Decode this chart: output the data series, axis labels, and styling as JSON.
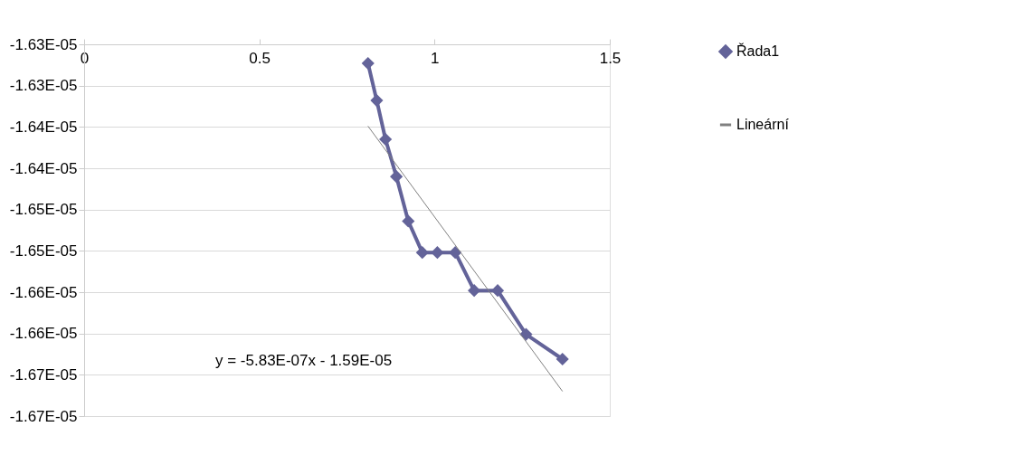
{
  "chart_data": {
    "type": "line",
    "annotations": [
      "y = -5.83E-07x - 1.59E-05"
    ],
    "x": [
      0.81,
      0.835,
      0.86,
      0.891,
      0.925,
      0.965,
      1.008,
      1.059,
      1.113,
      1.18,
      1.261,
      1.365
    ],
    "series": [
      {
        "name": "Řada1",
        "color": "#636399",
        "marker": "diamond",
        "values": [
          -1.6273e-05,
          -1.6318e-05,
          -1.6365e-05,
          -1.641e-05,
          -1.6464e-05,
          -1.6502e-05,
          -1.6502e-05,
          -1.6502e-05,
          -1.6548e-05,
          -1.6548e-05,
          -1.6601e-05,
          -1.6631e-05
        ]
      },
      {
        "name": "Lineární",
        "type": "line",
        "color": "#808080",
        "marker": "none",
        "x": [
          0.81,
          1.365
        ],
        "values": [
          -1.6349e-05,
          -1.667e-05
        ]
      }
    ],
    "xlim": [
      0,
      1.5
    ],
    "xticks": [
      0,
      0.5,
      1,
      1.5
    ],
    "ylim": [
      -1.67e-05,
      -1.625e-05
    ],
    "yticks": [
      {
        "value": -1.625e-05,
        "label": "-1.63E-05"
      },
      {
        "value": -1.63e-05,
        "label": "-1.63E-05"
      },
      {
        "value": -1.635e-05,
        "label": "-1.64E-05"
      },
      {
        "value": -1.64e-05,
        "label": "-1.64E-05"
      },
      {
        "value": -1.645e-05,
        "label": "-1.65E-05"
      },
      {
        "value": -1.65e-05,
        "label": "-1.65E-05"
      },
      {
        "value": -1.655e-05,
        "label": "-1.66E-05"
      },
      {
        "value": -1.66e-05,
        "label": "-1.66E-05"
      },
      {
        "value": -1.665e-05,
        "label": "-1.67E-05"
      },
      {
        "value": -1.67e-05,
        "label": "-1.67E-05"
      }
    ],
    "grid": "y",
    "legend": "right"
  }
}
